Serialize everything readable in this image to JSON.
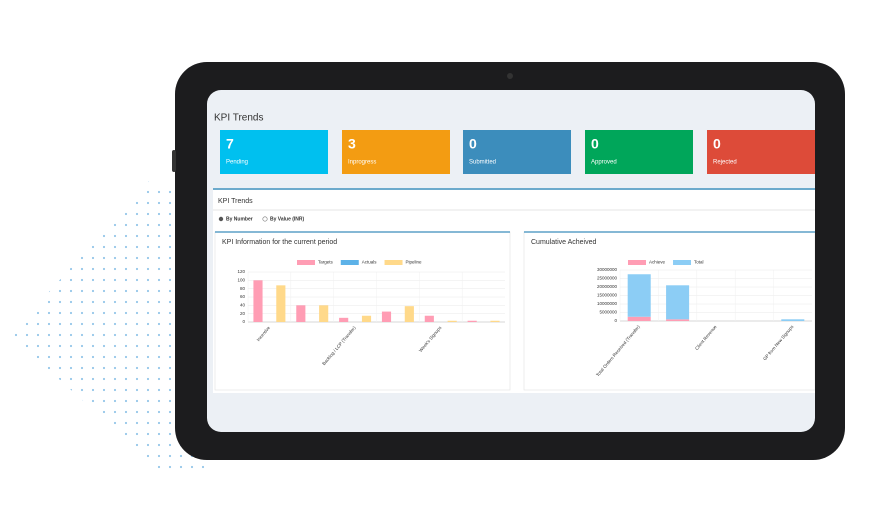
{
  "header": {
    "title": "KPI Trends"
  },
  "cards": [
    {
      "value": 7,
      "label": "Pending",
      "color": "#00c0ef"
    },
    {
      "value": 3,
      "label": "Inprogress",
      "color": "#f39c12"
    },
    {
      "value": 0,
      "label": "Submitted",
      "color": "#3c8dbc"
    },
    {
      "value": 0,
      "label": "Approved",
      "color": "#00a65a"
    },
    {
      "value": 0,
      "label": "Rejected",
      "color": "#dd4b39"
    }
  ],
  "panel": {
    "title": "KPI Trends",
    "options": [
      "By Number",
      "By Value (INR)"
    ]
  },
  "chart_data": [
    {
      "type": "bar",
      "title": "KPI Information for the current period",
      "categories": [
        "Incentive",
        null,
        "Backlog / LCP (Transfer)",
        null,
        "Week's Signups",
        null
      ],
      "series": [
        {
          "name": "Targets",
          "color": "#ff9db4",
          "values": [
            100,
            40,
            10,
            25,
            15,
            3
          ]
        },
        {
          "name": "Actuals",
          "color": "#5db2e8",
          "values": [
            0,
            0,
            0,
            0,
            0,
            0
          ]
        },
        {
          "name": "Pipeline",
          "color": "#ffd98a",
          "values": [
            88,
            40,
            15,
            38,
            3,
            3
          ]
        }
      ],
      "ylim": [
        0,
        120
      ],
      "yticks": [
        0,
        20,
        40,
        60,
        80,
        100,
        120
      ],
      "grid": true
    },
    {
      "type": "bar",
      "stacked": true,
      "title": "Cumulative Acheived",
      "categories": [
        "Total Orders Received (Transfer)",
        null,
        "Client Revenue",
        null,
        "GP from New Signups"
      ],
      "series": [
        {
          "name": "Achieve",
          "color": "#ff9db4",
          "values": [
            2500000,
            1000000,
            0,
            0,
            0
          ]
        },
        {
          "name": "Total",
          "color": "#8ccdf5",
          "values": [
            25000000,
            20000000,
            0,
            0,
            1000000
          ]
        }
      ],
      "ylim": [
        0,
        30000000
      ],
      "yticks": [
        0,
        5000000,
        10000000,
        15000000,
        20000000,
        25000000,
        30000000
      ],
      "grid": true
    }
  ]
}
